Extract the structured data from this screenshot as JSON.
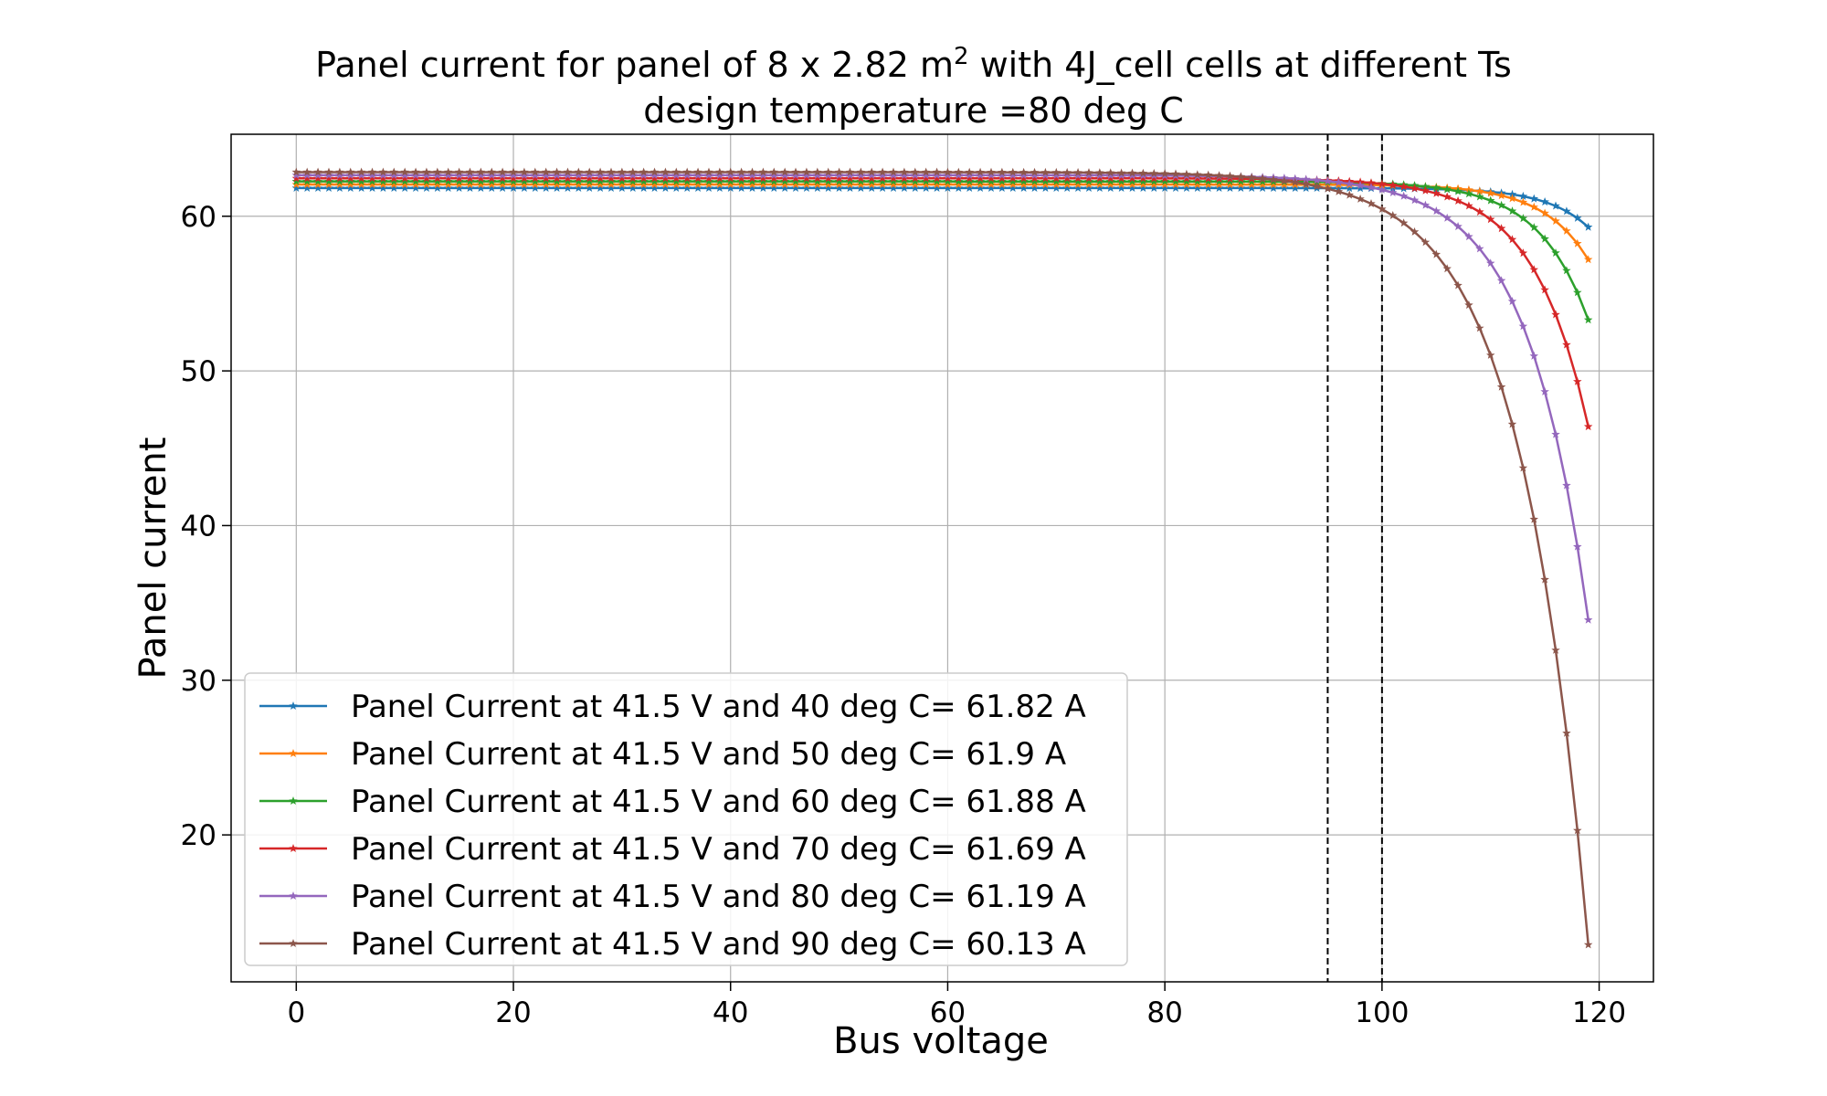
{
  "chart_data": {
    "type": "line",
    "title_main": "Panel current for panel of 8 x 2.82 m",
    "title_sup": "2",
    "title_rest": " with 4J_cell cells at different Ts",
    "subtitle": "design temperature =80 deg C",
    "xlabel": "Bus voltage",
    "ylabel": "Panel current",
    "xlim": [
      -6,
      125
    ],
    "ylim": [
      10.5,
      65.3
    ],
    "xticks": [
      "0",
      "20",
      "40",
      "60",
      "80",
      "100",
      "120"
    ],
    "yticks": [
      "20",
      "30",
      "40",
      "50",
      "60"
    ],
    "grid": true,
    "legend_position": "lower-left",
    "vlines": [
      95,
      100
    ],
    "series": [
      {
        "name": "Panel Current at 41.5 V and 40 deg C= 61.82 A",
        "color": "#1f77b4",
        "Isc": 61.82,
        "Vend": 119,
        "Iend": 59.3,
        "k": 0.26
      },
      {
        "name": "Panel Current at 41.5 V and 50 deg C= 61.9 A",
        "color": "#ff7f0e",
        "Isc": 62.05,
        "Vend": 119,
        "Iend": 57.2,
        "k": 0.24
      },
      {
        "name": "Panel Current at 41.5 V and 60 deg C= 61.88 A",
        "color": "#2ca02c",
        "Isc": 62.25,
        "Vend": 119,
        "Iend": 53.3,
        "k": 0.22
      },
      {
        "name": "Panel Current at 41.5 V and 70 deg C= 61.69 A",
        "color": "#d62728",
        "Isc": 62.45,
        "Vend": 119,
        "Iend": 46.4,
        "k": 0.2
      },
      {
        "name": "Panel Current at 41.5 V and 80 deg C= 61.19 A",
        "color": "#9467bd",
        "Isc": 62.65,
        "Vend": 119,
        "Iend": 33.9,
        "k": 0.18
      },
      {
        "name": "Panel Current at 41.5 V and 90 deg C= 60.13 A",
        "color": "#8c564b",
        "Isc": 62.85,
        "Vend": 119,
        "Iend": 12.9,
        "k": 0.16
      }
    ]
  }
}
